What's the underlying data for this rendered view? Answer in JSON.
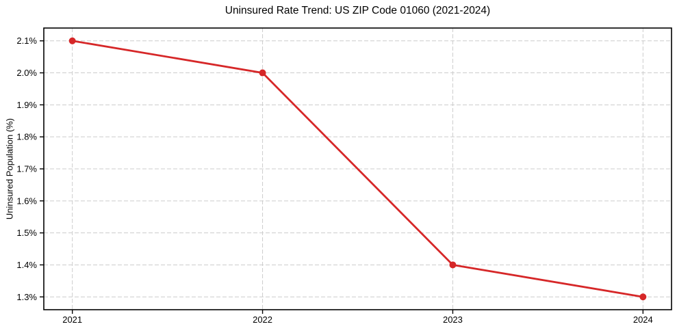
{
  "chart_data": {
    "type": "line",
    "title": "Uninsured Rate Trend: US ZIP Code 01060 (2021-2024)",
    "ylabel": "Uninsured Population (%)",
    "xlabel": "",
    "x": [
      2021,
      2022,
      2023,
      2024
    ],
    "values": [
      2.1,
      2.0,
      1.4,
      1.3
    ],
    "x_tick_labels": [
      "2021",
      "2022",
      "2023",
      "2024"
    ],
    "y_ticks": [
      1.3,
      1.4,
      1.5,
      1.6,
      1.7,
      1.8,
      1.9,
      2.0,
      2.1
    ],
    "y_tick_labels": [
      "1.3%",
      "1.4%",
      "1.5%",
      "1.6%",
      "1.7%",
      "1.8%",
      "1.9%",
      "2.0%",
      "2.1%"
    ],
    "xlim": [
      2020.85,
      2024.15
    ],
    "ylim": [
      1.26,
      2.14
    ],
    "grid": true,
    "legend_position": "none",
    "line_color": "#d62728",
    "marker": "circle",
    "grid_color": "#cccccc",
    "spine_color": "#000000",
    "text_color": "#000000",
    "background_color": "#ffffff"
  }
}
